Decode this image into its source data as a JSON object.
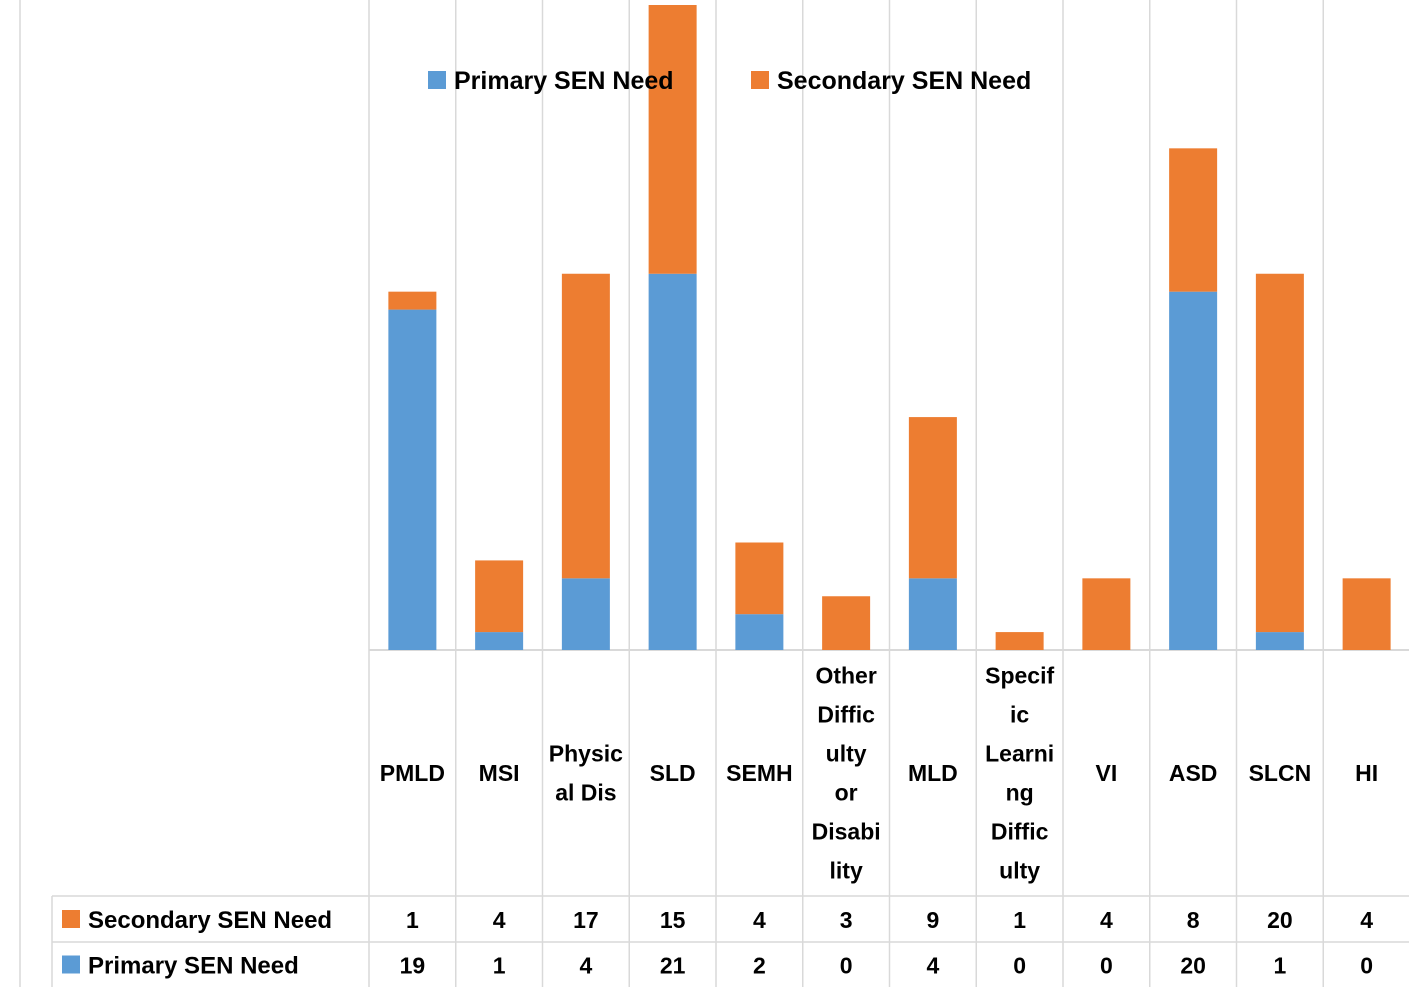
{
  "chart_data": {
    "type": "bar",
    "stacked": true,
    "categories": [
      "PMLD",
      "MSI",
      "Physic al Dis",
      "SLD",
      "SEMH",
      "Other Diffic ulty or Disabi lity",
      "MLD",
      "Specif ic Learni ng Diffic ulty",
      "VI",
      "ASD",
      "SLCN",
      "HI"
    ],
    "category_lines": [
      [
        "PMLD"
      ],
      [
        "MSI"
      ],
      [
        "Physic",
        "al Dis"
      ],
      [
        "SLD"
      ],
      [
        "SEMH"
      ],
      [
        "Other",
        "Diffic",
        "ulty",
        "or",
        "Disabi",
        "lity"
      ],
      [
        "MLD"
      ],
      [
        "Specif",
        "ic",
        "Learni",
        "ng",
        "Diffic",
        "ulty"
      ],
      [
        "VI"
      ],
      [
        "ASD"
      ],
      [
        "SLCN"
      ],
      [
        "HI"
      ]
    ],
    "series": [
      {
        "name": "Primary SEN Need",
        "color": "#5B9BD5",
        "values": [
          19,
          1,
          4,
          21,
          2,
          0,
          4,
          0,
          0,
          20,
          1,
          0
        ]
      },
      {
        "name": "Secondary SEN Need",
        "color": "#ED7D31",
        "values": [
          1,
          4,
          17,
          15,
          4,
          3,
          9,
          1,
          4,
          8,
          20,
          4
        ]
      }
    ],
    "ylim": [
      0,
      36
    ],
    "legend_position": "top",
    "gridlines": "vertical category separators",
    "data_table": true
  }
}
